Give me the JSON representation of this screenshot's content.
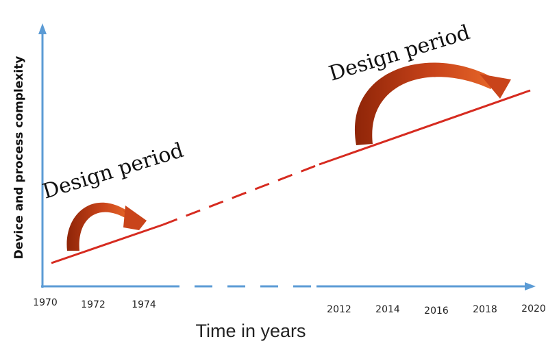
{
  "diagram": {
    "y_axis_label": "Device and process complexity",
    "x_axis_label": "Time in years",
    "x_ticks_early": [
      "1970",
      "1972",
      "1974"
    ],
    "x_ticks_late": [
      "2012",
      "2014",
      "2016",
      "2018",
      "2020"
    ],
    "annotations": [
      "Design period",
      "Design period"
    ],
    "colors": {
      "axis": "#5b9bd5",
      "trend_line": "#d62b20",
      "arrow_dark": "#9a2a0c",
      "arrow_light": "#e0581e"
    }
  }
}
